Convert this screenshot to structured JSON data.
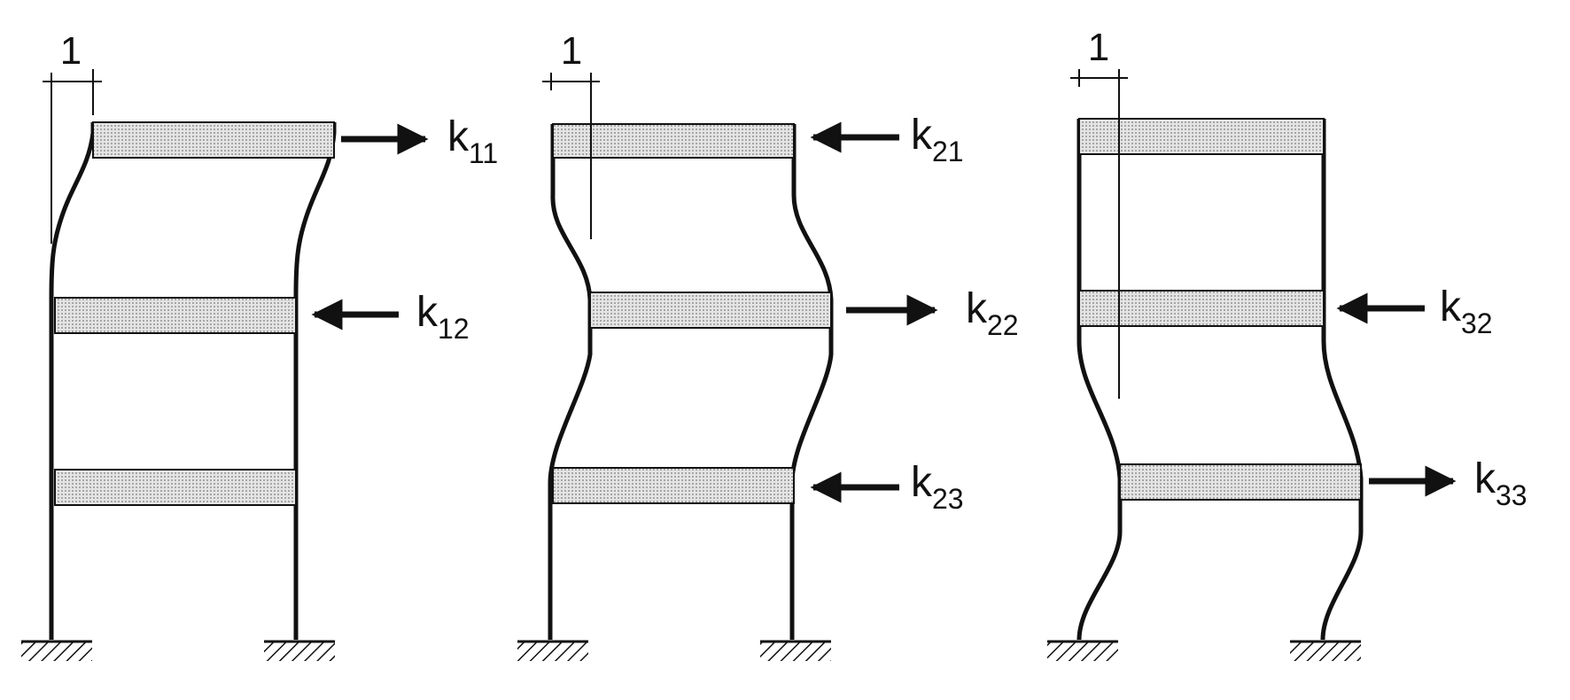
{
  "frames": [
    {
      "unit_label": "1",
      "forces": [
        {
          "main": "k",
          "sub": "11",
          "direction": "right"
        },
        {
          "main": "k",
          "sub": "12",
          "direction": "left"
        }
      ]
    },
    {
      "unit_label": "1",
      "forces": [
        {
          "main": "k",
          "sub": "21",
          "direction": "left"
        },
        {
          "main": "k",
          "sub": "22",
          "direction": "right"
        },
        {
          "main": "k",
          "sub": "23",
          "direction": "left"
        }
      ]
    },
    {
      "unit_label": "1",
      "forces": [
        {
          "main": "k",
          "sub": "32",
          "direction": "left"
        },
        {
          "main": "k",
          "sub": "33",
          "direction": "right"
        }
      ]
    }
  ],
  "colors": {
    "ink": "#111111",
    "slab_fill": "#cfcfcf"
  }
}
